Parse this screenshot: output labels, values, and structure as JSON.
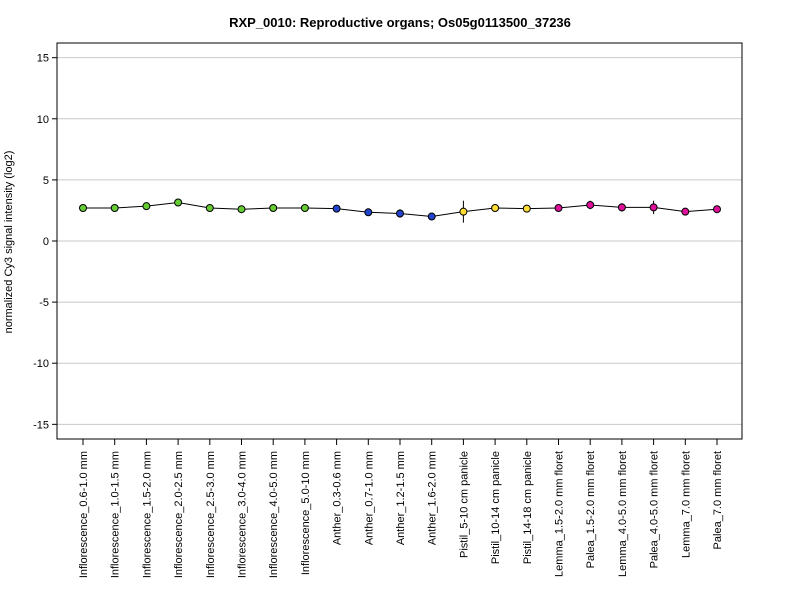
{
  "chart_data": {
    "type": "line",
    "title": "RXP_0010: Reproductive organs; Os05g0113500_37236",
    "xlabel": "",
    "ylabel": "normalized Cy3 signal intensity (log2)",
    "ylim": [
      -16.2,
      16.2
    ],
    "yticks": [
      -15,
      -10,
      -5,
      0,
      5,
      10,
      15
    ],
    "grid": true,
    "categories": [
      "Inflorescence_0.6-1.0 mm",
      "Inflorescence_1.0-1.5 mm",
      "Inflorescence_1.5-2.0 mm",
      "Inflorescence_2.0-2.5 mm",
      "Inflorescence_2.5-3.0 mm",
      "Inflorescence_3.0-4.0 mm",
      "Inflorescence_4.0-5.0 mm",
      "Inflorescence_5.0-10 mm",
      "Anther_0.3-0.6 mm",
      "Anther_0.7-1.0 mm",
      "Anther_1.2-1.5 mm",
      "Anther_1.6-2.0 mm",
      "Pistil_5-10 cm panicle",
      "Pistil_10-14 cm panicle",
      "Pistil_14-18 cm panicle",
      "Lemma_1.5-2.0 mm floret",
      "Palea_1.5-2.0 mm floret",
      "Lemma_4.0-5.0 mm floret",
      "Palea_4.0-5.0 mm floret",
      "Lemma_7.0 mm floret",
      "Palea_7.0 mm floret"
    ],
    "values": [
      2.7,
      2.7,
      2.85,
      3.15,
      2.7,
      2.6,
      2.7,
      2.7,
      2.65,
      2.35,
      2.25,
      2.0,
      2.4,
      2.7,
      2.65,
      2.7,
      2.95,
      2.75,
      2.75,
      2.4,
      2.6
    ],
    "errors": [
      0.1,
      0.1,
      0.15,
      0.1,
      0.1,
      0.1,
      0.1,
      0.1,
      0.3,
      0.2,
      0.35,
      0.3,
      0.9,
      0.15,
      0.1,
      0.1,
      0.35,
      0.35,
      0.55,
      0.1,
      0.15
    ],
    "point_colors": [
      "#66cc33",
      "#66cc33",
      "#66cc33",
      "#66cc33",
      "#66cc33",
      "#66cc33",
      "#66cc33",
      "#66cc33",
      "#2244cc",
      "#2244cc",
      "#2244cc",
      "#2244cc",
      "#ffdd33",
      "#ffdd33",
      "#ffdd33",
      "#dd1199",
      "#dd1199",
      "#dd1199",
      "#dd1199",
      "#dd1199",
      "#dd1199"
    ]
  }
}
